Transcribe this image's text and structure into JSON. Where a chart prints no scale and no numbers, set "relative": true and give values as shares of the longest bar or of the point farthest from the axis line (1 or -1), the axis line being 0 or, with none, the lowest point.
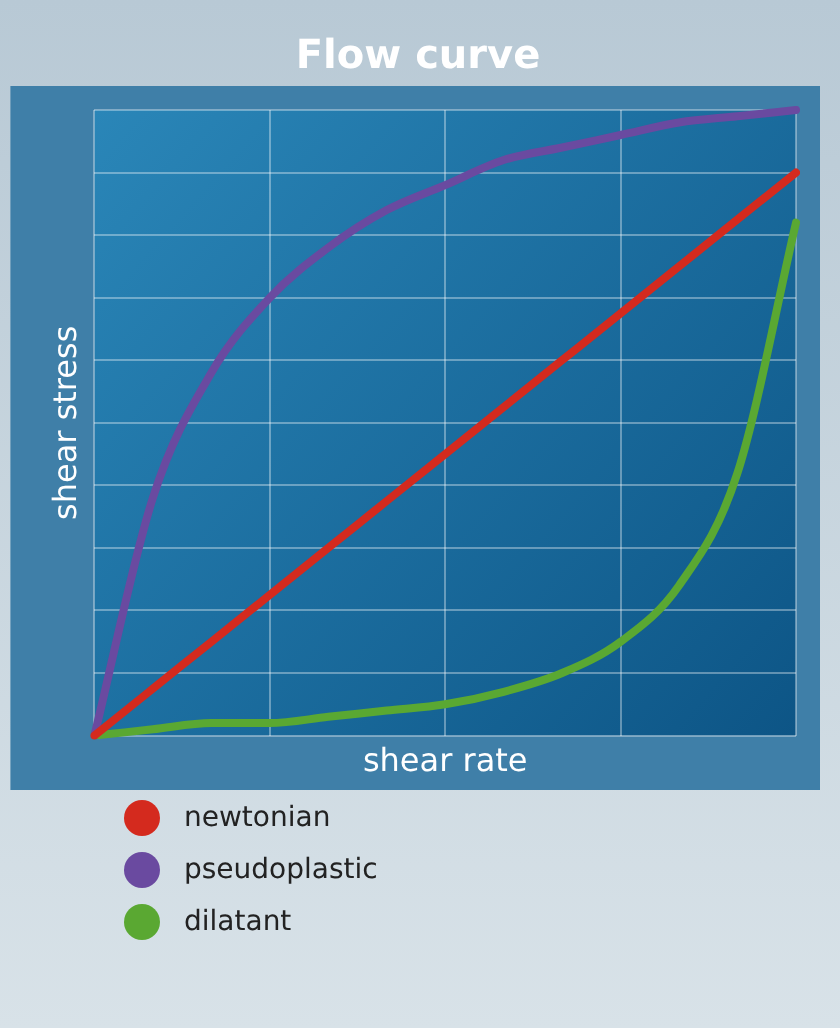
{
  "chart_data": {
    "type": "line",
    "title": "Flow curve",
    "xlabel": "shear rate",
    "ylabel": "shear stress",
    "relative": true,
    "grid": true,
    "legend": "bottom",
    "marker": "none",
    "line_style": "solid",
    "categories": [
      null,
      null,
      null,
      null,
      null,
      null,
      null,
      null,
      null,
      null,
      null,
      null,
      null
    ],
    "series": [
      {
        "name": "newtonian",
        "color": "#d42a1e",
        "values": [
          0,
          0.075,
          0.15,
          0.225,
          0.3,
          0.375,
          0.45,
          0.525,
          0.6,
          0.675,
          0.75,
          0.825,
          0.9
        ]
      },
      {
        "name": "pseudoplastic",
        "color": "#6a4aa0",
        "values": [
          0,
          0.38,
          0.58,
          0.7,
          0.78,
          0.84,
          0.88,
          0.92,
          0.94,
          0.96,
          0.98,
          0.99,
          1
        ]
      },
      {
        "name": "dilatant",
        "color": "#5aa832",
        "values": [
          0,
          0.01,
          0.02,
          0.02,
          0.03,
          0.04,
          0.05,
          0.07,
          0.1,
          0.15,
          0.24,
          0.42,
          0.82
        ]
      }
    ]
  }
}
